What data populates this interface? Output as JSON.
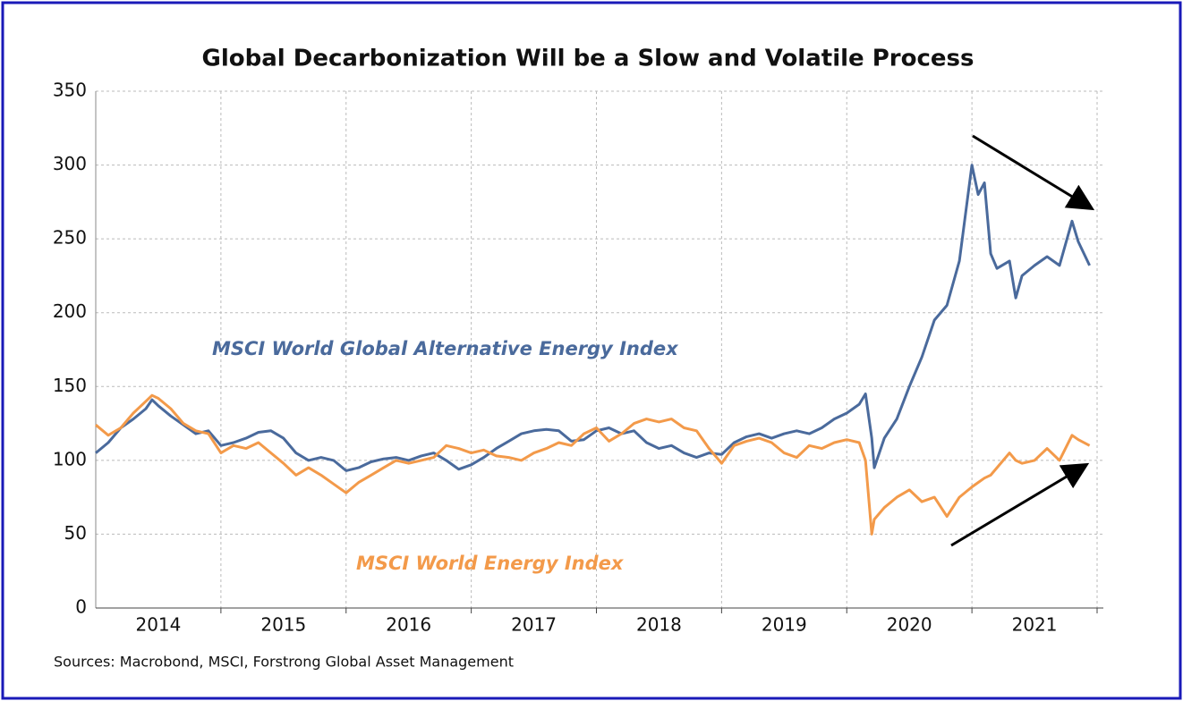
{
  "chart_data": {
    "type": "line",
    "title": "Global Decarbonization Will be a Slow and Volatile Process",
    "source": "Sources: Macrobond, MSCI, Forstrong Global Asset Management",
    "x": [
      2014.0,
      2014.1,
      2014.2,
      2014.3,
      2014.4,
      2014.45,
      2014.5,
      2014.6,
      2014.7,
      2014.8,
      2014.9,
      2015.0,
      2015.1,
      2015.2,
      2015.3,
      2015.4,
      2015.5,
      2015.6,
      2015.7,
      2015.8,
      2015.9,
      2016.0,
      2016.1,
      2016.2,
      2016.3,
      2016.4,
      2016.5,
      2016.6,
      2016.7,
      2016.8,
      2016.9,
      2017.0,
      2017.1,
      2017.2,
      2017.3,
      2017.4,
      2017.5,
      2017.6,
      2017.7,
      2017.8,
      2017.9,
      2018.0,
      2018.1,
      2018.2,
      2018.3,
      2018.4,
      2018.5,
      2018.6,
      2018.7,
      2018.8,
      2018.9,
      2019.0,
      2019.1,
      2019.2,
      2019.3,
      2019.4,
      2019.5,
      2019.6,
      2019.7,
      2019.8,
      2019.9,
      2020.0,
      2020.1,
      2020.15,
      2020.2,
      2020.22,
      2020.3,
      2020.4,
      2020.5,
      2020.6,
      2020.7,
      2020.8,
      2020.9,
      2021.0,
      2021.05,
      2021.1,
      2021.15,
      2021.2,
      2021.3,
      2021.35,
      2021.4,
      2021.5,
      2021.6,
      2021.7,
      2021.8,
      2021.85,
      2021.94
    ],
    "series": [
      {
        "name": "MSCI World Global Alternative Energy Index",
        "color": "#4a6a9c",
        "values": [
          105,
          112,
          122,
          128,
          135,
          141,
          137,
          130,
          124,
          118,
          120,
          110,
          112,
          115,
          119,
          120,
          115,
          105,
          100,
          102,
          100,
          93,
          95,
          99,
          101,
          102,
          100,
          103,
          105,
          100,
          94,
          97,
          102,
          108,
          113,
          118,
          120,
          121,
          120,
          113,
          114,
          120,
          122,
          118,
          120,
          112,
          108,
          110,
          105,
          102,
          105,
          104,
          112,
          116,
          118,
          115,
          118,
          120,
          118,
          122,
          128,
          132,
          138,
          145,
          115,
          95,
          115,
          128,
          150,
          170,
          195,
          205,
          235,
          300,
          280,
          288,
          240,
          230,
          235,
          210,
          225,
          232,
          238,
          232,
          262,
          248,
          232
        ]
      },
      {
        "name": "MSCI World Energy Index",
        "color": "#f39a4a",
        "values": [
          124,
          117,
          122,
          132,
          140,
          144,
          142,
          135,
          125,
          120,
          118,
          105,
          110,
          108,
          112,
          105,
          98,
          90,
          95,
          90,
          84,
          78,
          85,
          90,
          95,
          100,
          98,
          100,
          102,
          110,
          108,
          105,
          107,
          103,
          102,
          100,
          105,
          108,
          112,
          110,
          118,
          122,
          113,
          118,
          125,
          128,
          126,
          128,
          122,
          120,
          108,
          98,
          110,
          113,
          115,
          112,
          105,
          102,
          110,
          108,
          112,
          114,
          112,
          100,
          50,
          60,
          68,
          75,
          80,
          72,
          75,
          62,
          75,
          82,
          85,
          88,
          90,
          95,
          105,
          100,
          98,
          100,
          108,
          100,
          117,
          114,
          110
        ]
      }
    ],
    "xlim": [
      2014,
      2022.05
    ],
    "xticks": [
      {
        "value": 2014.5,
        "label": "2014"
      },
      {
        "value": 2015.5,
        "label": "2015"
      },
      {
        "value": 2016.5,
        "label": "2016"
      },
      {
        "value": 2017.5,
        "label": "2017"
      },
      {
        "value": 2018.5,
        "label": "2018"
      },
      {
        "value": 2019.5,
        "label": "2019"
      },
      {
        "value": 2020.5,
        "label": "2020"
      },
      {
        "value": 2021.5,
        "label": "2021"
      }
    ],
    "xgrid": [
      2015,
      2016,
      2017,
      2018,
      2019,
      2020,
      2021,
      2022
    ],
    "ylim": [
      0,
      350
    ],
    "yticks": [
      0,
      50,
      100,
      150,
      200,
      250,
      300,
      350
    ],
    "grid": true
  }
}
